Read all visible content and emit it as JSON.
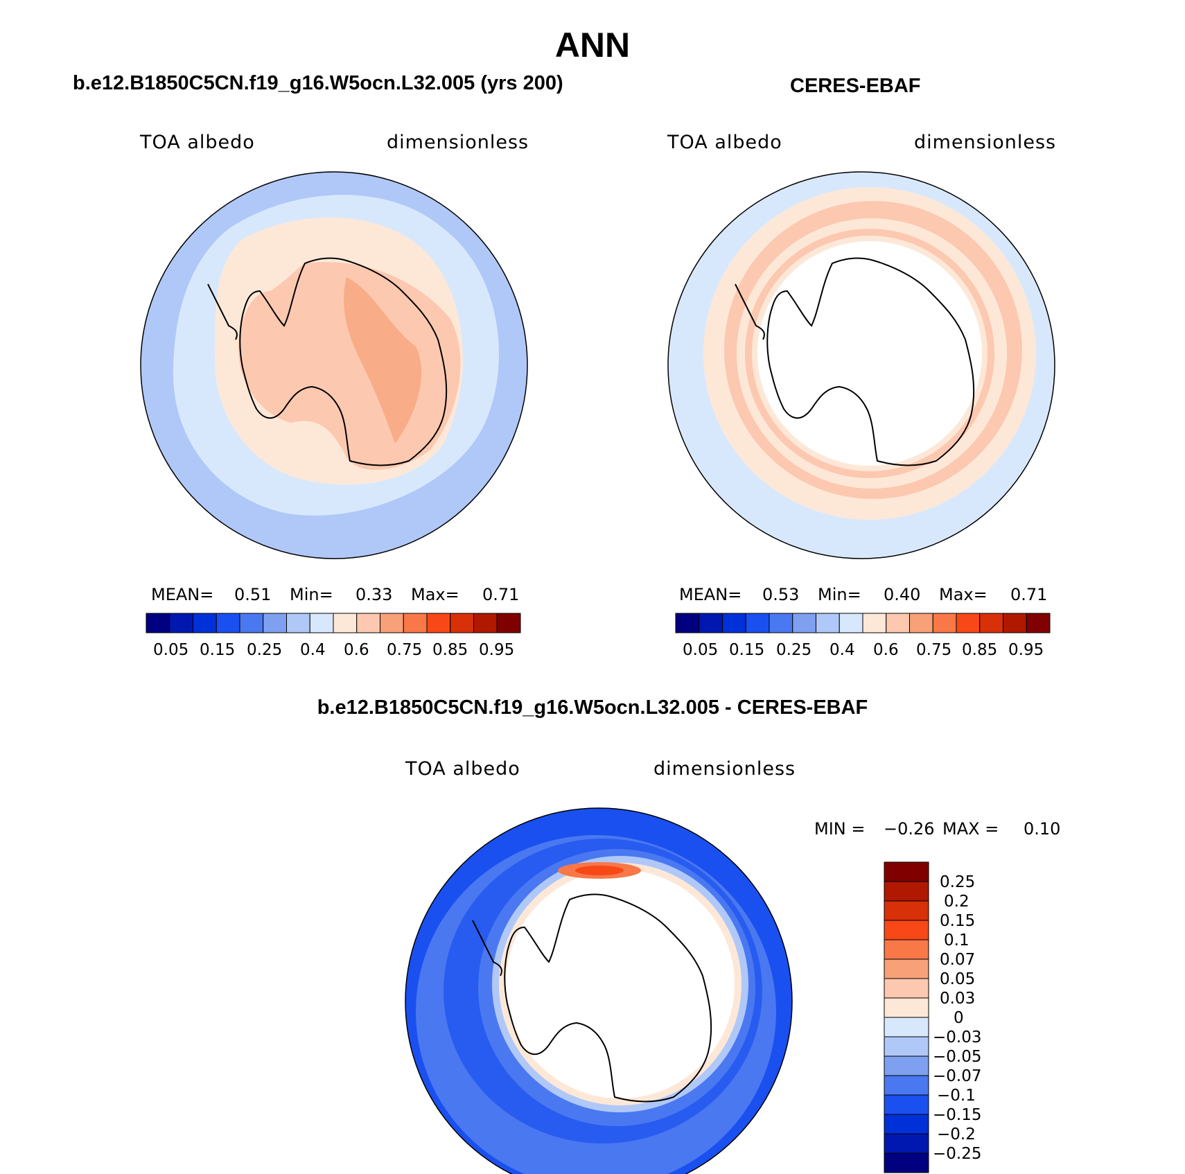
{
  "page_title": "ANN",
  "palette": [
    "#000080",
    "#0018b0",
    "#0030d8",
    "#1a50f0",
    "#4a78f0",
    "#7fa0f0",
    "#b0c8f8",
    "#d8e8fc",
    "#fde8d8",
    "#fcc8b0",
    "#f8a078",
    "#f87848",
    "#f84818",
    "#d83008",
    "#b01800",
    "#800000"
  ],
  "panels": [
    {
      "title": "b.e12.B1850C5CN.f19_g16.W5ocn.L32.005 (yrs 200)",
      "left_label": "TOA albedo",
      "right_label": "dimensionless",
      "stats": {
        "mean_label": "MEAN=",
        "mean": "0.51",
        "min_label": "Min=",
        "min": "0.33",
        "max_label": "Max=",
        "max": "0.71"
      },
      "colorbar_labels": [
        "0.05",
        "0.15",
        "0.25",
        "0.4",
        "0.6",
        "0.75",
        "0.85",
        "0.95"
      ]
    },
    {
      "title": "CERES-EBAF",
      "left_label": "TOA albedo",
      "right_label": "dimensionless",
      "stats": {
        "mean_label": "MEAN=",
        "mean": "0.53",
        "min_label": "Min=",
        "min": "0.40",
        "max_label": "Max=",
        "max": "0.71"
      },
      "colorbar_labels": [
        "0.05",
        "0.15",
        "0.25",
        "0.4",
        "0.6",
        "0.75",
        "0.85",
        "0.95"
      ]
    }
  ],
  "diff_panel": {
    "title": "b.e12.B1850C5CN.f19_g16.W5ocn.L32.005 - CERES-EBAF",
    "left_label": "TOA albedo",
    "right_label": "dimensionless",
    "stats": {
      "min_label": "MIN =",
      "min": "−0.26",
      "max_label": "MAX =",
      "max": "0.10"
    },
    "colorbar_labels": [
      "0.25",
      "0.2",
      "0.15",
      "0.1",
      "0.07",
      "0.05",
      "0.03",
      "0",
      "−0.03",
      "−0.05",
      "−0.07",
      "−0.1",
      "−0.15",
      "−0.2",
      "−0.25"
    ]
  }
}
